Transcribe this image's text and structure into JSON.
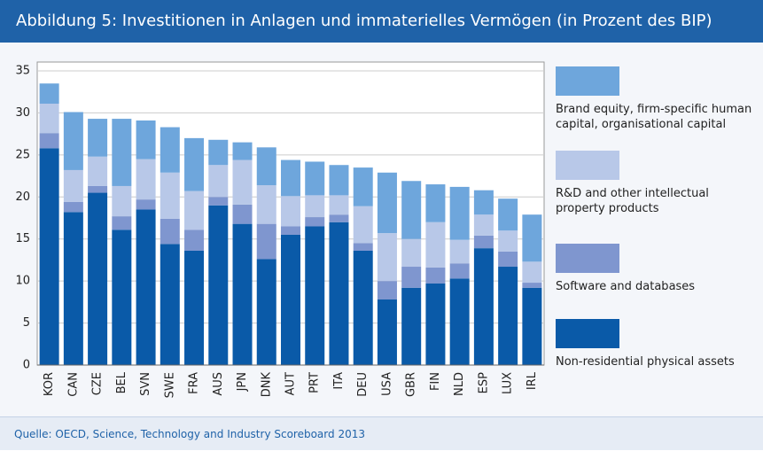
{
  "chart_data": {
    "type": "stacked_bar",
    "title": "Abbildung 5: Investitionen in Anlagen und immaterielles Vermögen (in Prozent des BIP)",
    "source": "Quelle: OECD, Science, Technology and Industry Scoreboard 2013",
    "categories": [
      "KOR",
      "CAN",
      "CZE",
      "BEL",
      "SVN",
      "SWE",
      "FRA",
      "AUS",
      "JPN",
      "DNK",
      "AUT",
      "PRT",
      "ITA",
      "DEU",
      "USA",
      "GBR",
      "FIN",
      "NLD",
      "ESP",
      "LUX",
      "IRL"
    ],
    "series": [
      {
        "name": "Non-residential physical assets",
        "color": "#0a5aa8",
        "values": [
          25.8,
          18.2,
          20.5,
          16.1,
          18.5,
          14.4,
          13.6,
          19.0,
          16.8,
          12.6,
          15.5,
          16.5,
          17.0,
          13.6,
          7.8,
          9.2,
          9.7,
          10.3,
          13.9,
          11.7,
          9.2
        ]
      },
      {
        "name": "Software and databases",
        "color": "#7f96cf",
        "values": [
          1.8,
          1.2,
          0.8,
          1.6,
          1.2,
          3.0,
          2.5,
          1.0,
          2.3,
          4.2,
          1.0,
          1.1,
          0.9,
          0.9,
          2.2,
          2.5,
          1.9,
          1.8,
          1.5,
          1.8,
          0.6
        ]
      },
      {
        "name": "R&D and other intellectual property products",
        "color": "#b8c8e8",
        "values": [
          3.5,
          3.8,
          3.5,
          3.6,
          4.8,
          5.5,
          4.6,
          3.8,
          5.3,
          4.6,
          3.6,
          2.6,
          2.3,
          4.4,
          5.7,
          3.3,
          5.4,
          2.8,
          2.5,
          2.5,
          2.5
        ]
      },
      {
        "name": "Brand equity, firm-specific human capital, organisational capital",
        "color": "#6ea6dc",
        "values": [
          2.4,
          6.9,
          4.5,
          8.0,
          4.6,
          5.4,
          6.3,
          3.0,
          2.1,
          4.5,
          4.3,
          4.0,
          3.6,
          4.6,
          7.2,
          6.9,
          4.5,
          6.3,
          2.9,
          3.8,
          5.6
        ]
      }
    ],
    "ylim": [
      0,
      35
    ],
    "yticks": [
      0,
      5,
      10,
      15,
      20,
      25,
      30,
      35
    ],
    "grid": true
  }
}
